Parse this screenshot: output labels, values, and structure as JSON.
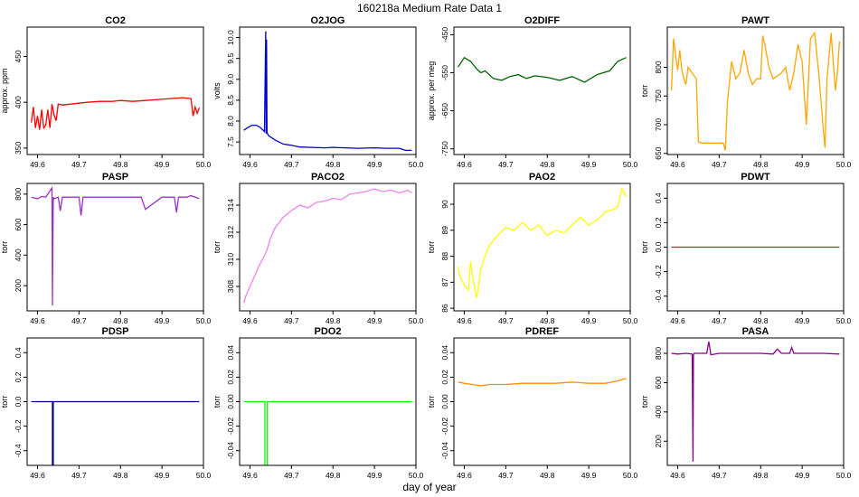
{
  "figure": {
    "title": "160218a   Medium Rate Data 1",
    "xlabel": "day of year"
  },
  "chart_data": [
    {
      "type": "line",
      "title": "CO2",
      "ylabel": "approx. ppm",
      "color": "#ff0000",
      "xlim": [
        49.575,
        50.0
      ],
      "ylim": [
        343,
        482
      ],
      "xticks": [
        "49.6",
        "49.7",
        "49.8",
        "49.9",
        "50.0"
      ],
      "yticks": [
        "350",
        "400",
        "450"
      ],
      "x": [
        49.585,
        49.59,
        49.595,
        49.6,
        49.605,
        49.61,
        49.615,
        49.62,
        49.625,
        49.63,
        49.635,
        49.64,
        49.645,
        49.65,
        49.66,
        49.68,
        49.7,
        49.72,
        49.75,
        49.78,
        49.8,
        49.83,
        49.86,
        49.89,
        49.92,
        49.95,
        49.97,
        49.975,
        49.98,
        49.985,
        49.99
      ],
      "y": [
        378,
        395,
        372,
        385,
        370,
        392,
        372,
        375,
        392,
        372,
        398,
        386,
        380,
        398,
        397,
        398,
        399,
        400,
        401,
        401,
        402,
        401,
        402,
        403,
        404,
        405,
        404,
        385,
        395,
        388,
        394
      ]
    },
    {
      "type": "line",
      "title": "O2JOG",
      "ylabel": "volts",
      "color": "#0000cc",
      "xlim": [
        49.575,
        50.0
      ],
      "ylim": [
        7.2,
        10.25
      ],
      "xticks": [
        "49.6",
        "49.7",
        "49.8",
        "49.9",
        "50.0"
      ],
      "yticks": [
        "7.5",
        "8.0",
        "8.5",
        "9.0",
        "9.5",
        "10.0"
      ],
      "x": [
        49.585,
        49.595,
        49.605,
        49.615,
        49.625,
        49.635,
        49.638,
        49.639,
        49.64,
        49.641,
        49.645,
        49.66,
        49.68,
        49.7,
        49.72,
        49.75,
        49.78,
        49.8,
        49.83,
        49.86,
        49.9,
        49.93,
        49.96,
        49.975,
        49.99
      ],
      "y": [
        7.78,
        7.85,
        7.9,
        7.9,
        7.85,
        7.75,
        10.15,
        7.7,
        9.95,
        7.72,
        7.65,
        7.55,
        7.45,
        7.42,
        7.38,
        7.37,
        7.36,
        7.37,
        7.36,
        7.35,
        7.36,
        7.35,
        7.35,
        7.3,
        7.3
      ]
    },
    {
      "type": "line",
      "title": "O2DIFF",
      "ylabel": "approx. per meg",
      "color": "#006400",
      "xlim": [
        49.575,
        50.0
      ],
      "ylim": [
        -765,
        -430
      ],
      "xticks": [
        "49.6",
        "49.7",
        "49.8",
        "49.9",
        "50.0"
      ],
      "yticks": [
        "-750",
        "-650",
        "-550",
        "-450"
      ],
      "x": [
        49.585,
        49.6,
        49.615,
        49.63,
        49.64,
        49.65,
        49.67,
        49.69,
        49.71,
        49.73,
        49.75,
        49.77,
        49.8,
        49.83,
        49.86,
        49.89,
        49.92,
        49.95,
        49.97,
        49.99
      ],
      "y": [
        -535,
        -510,
        -520,
        -540,
        -550,
        -545,
        -565,
        -570,
        -560,
        -555,
        -565,
        -558,
        -562,
        -570,
        -560,
        -575,
        -555,
        -545,
        -520,
        -510
      ]
    },
    {
      "type": "line",
      "title": "PAWT",
      "ylabel": "torr",
      "color": "#ffa500",
      "xlim": [
        49.575,
        50.0
      ],
      "ylim": [
        648,
        870
      ],
      "xticks": [
        "49.6",
        "49.7",
        "49.8",
        "49.9",
        "50.0"
      ],
      "yticks": [
        "650",
        "700",
        "750",
        "800"
      ],
      "x": [
        49.585,
        49.59,
        49.595,
        49.6,
        49.605,
        49.61,
        49.615,
        49.62,
        49.625,
        49.63,
        49.635,
        49.64,
        49.645,
        49.65,
        49.66,
        49.68,
        49.7,
        49.71,
        49.715,
        49.72,
        49.73,
        49.74,
        49.75,
        49.76,
        49.77,
        49.78,
        49.79,
        49.8,
        49.805,
        49.81,
        49.82,
        49.83,
        49.84,
        49.85,
        49.86,
        49.87,
        49.88,
        49.89,
        49.9,
        49.91,
        49.92,
        49.93,
        49.94,
        49.95,
        49.955,
        49.96,
        49.97,
        49.975,
        49.98,
        49.985,
        49.99
      ],
      "y": [
        760,
        850,
        820,
        795,
        830,
        795,
        780,
        770,
        800,
        795,
        790,
        785,
        780,
        670,
        668,
        668,
        668,
        668,
        655,
        740,
        810,
        780,
        790,
        830,
        790,
        770,
        780,
        780,
        855,
        840,
        800,
        780,
        785,
        790,
        800,
        760,
        790,
        840,
        810,
        700,
        850,
        860,
        790,
        700,
        660,
        780,
        860,
        810,
        760,
        790,
        845
      ]
    },
    {
      "type": "line",
      "title": "PASP",
      "ylabel": "torr",
      "color": "#9932cc",
      "xlim": [
        49.575,
        50.0
      ],
      "ylim": [
        35,
        870
      ],
      "xticks": [
        "49.6",
        "49.7",
        "49.8",
        "49.9",
        "50.0"
      ],
      "yticks": [
        "200",
        "400",
        "600",
        "800"
      ],
      "x": [
        49.585,
        49.6,
        49.61,
        49.62,
        49.625,
        49.63,
        49.635,
        49.636,
        49.638,
        49.64,
        49.65,
        49.655,
        49.66,
        49.7,
        49.705,
        49.71,
        49.8,
        49.85,
        49.86,
        49.9,
        49.93,
        49.935,
        49.94,
        49.95,
        49.96,
        49.97,
        49.99
      ],
      "y": [
        780,
        770,
        785,
        780,
        800,
        820,
        840,
        70,
        780,
        770,
        780,
        690,
        780,
        780,
        660,
        780,
        780,
        780,
        700,
        780,
        780,
        680,
        780,
        780,
        780,
        790,
        770
      ]
    },
    {
      "type": "line",
      "title": "PACO2",
      "ylabel": "torr",
      "color": "#ee82ee",
      "xlim": [
        49.575,
        50.0
      ],
      "ylim": [
        306.2,
        315.6
      ],
      "xticks": [
        "49.6",
        "49.7",
        "49.8",
        "49.9",
        "50.0"
      ],
      "yticks": [
        "308",
        "310",
        "312",
        "314"
      ],
      "x": [
        49.585,
        49.59,
        49.6,
        49.61,
        49.62,
        49.63,
        49.64,
        49.65,
        49.66,
        49.68,
        49.7,
        49.72,
        49.74,
        49.76,
        49.78,
        49.8,
        49.82,
        49.84,
        49.86,
        49.88,
        49.9,
        49.92,
        49.94,
        49.96,
        49.98,
        49.99
      ],
      "y": [
        306.8,
        307.3,
        308.0,
        308.7,
        309.4,
        310.0,
        310.6,
        311.6,
        312.3,
        313.1,
        313.6,
        314.0,
        313.8,
        314.2,
        314.3,
        314.5,
        314.4,
        314.8,
        314.9,
        315.0,
        315.2,
        315.0,
        315.1,
        314.9,
        315.1,
        314.9
      ]
    },
    {
      "type": "line",
      "title": "PAO2",
      "ylabel": "torr",
      "color": "#ffff00",
      "xlim": [
        49.575,
        50.0
      ],
      "ylim": [
        85.9,
        90.8
      ],
      "xticks": [
        "49.6",
        "49.7",
        "49.8",
        "49.9",
        "50.0"
      ],
      "yticks": [
        "86",
        "87",
        "88",
        "89",
        "90"
      ],
      "x": [
        49.585,
        49.59,
        49.6,
        49.61,
        49.615,
        49.62,
        49.63,
        49.64,
        49.65,
        49.66,
        49.68,
        49.7,
        49.72,
        49.74,
        49.76,
        49.78,
        49.8,
        49.82,
        49.84,
        49.86,
        49.88,
        49.9,
        49.92,
        49.94,
        49.96,
        49.97,
        49.98,
        49.99
      ],
      "y": [
        87.6,
        87.2,
        86.9,
        86.7,
        87.8,
        87.2,
        86.4,
        87.5,
        88.0,
        88.4,
        88.8,
        89.1,
        89.0,
        89.3,
        89.0,
        89.2,
        88.8,
        89.0,
        88.9,
        89.2,
        89.5,
        89.2,
        89.4,
        89.7,
        89.8,
        89.9,
        90.6,
        90.3
      ]
    },
    {
      "type": "line",
      "title": "PDWT",
      "ylabel": "torr",
      "color": "#a52a2a",
      "xlim": [
        49.575,
        50.0
      ],
      "ylim": [
        -0.52,
        0.52
      ],
      "xticks": [
        "49.6",
        "49.7",
        "49.8",
        "49.9",
        "50.0"
      ],
      "yticks": [
        "-0.4",
        "-0.2",
        "0.0",
        "0.2",
        "0.4"
      ],
      "x": [
        49.585,
        49.99
      ],
      "y": [
        0.0,
        0.0
      ]
    },
    {
      "type": "line",
      "title": "PDSP",
      "ylabel": "torr",
      "color": "#000080",
      "xlim": [
        49.575,
        50.0
      ],
      "ylim": [
        -0.52,
        0.52
      ],
      "xticks": [
        "49.6",
        "49.7",
        "49.8",
        "49.9",
        "50.0"
      ],
      "yticks": [
        "-0.4",
        "-0.2",
        "0.0",
        "0.2",
        "0.4"
      ],
      "x": [
        49.585,
        49.636,
        49.636,
        49.638,
        49.638,
        49.99
      ],
      "y": [
        0.0,
        0.0,
        -0.52,
        -0.52,
        0.0,
        0.0
      ]
    },
    {
      "type": "line",
      "title": "PDO2",
      "ylabel": "torr",
      "color": "#00ff00",
      "xlim": [
        49.575,
        50.0
      ],
      "ylim": [
        -0.052,
        0.052
      ],
      "xticks": [
        "49.6",
        "49.7",
        "49.8",
        "49.9",
        "50.0"
      ],
      "yticks": [
        "-0.04",
        "-0.02",
        "0.00",
        "0.02",
        "0.04"
      ],
      "x": [
        49.585,
        49.636,
        49.636,
        49.642,
        49.642,
        49.99
      ],
      "y": [
        0.0,
        0.0,
        -0.052,
        -0.052,
        0.0,
        0.0
      ]
    },
    {
      "type": "line",
      "title": "PDREF",
      "ylabel": "torr",
      "color": "#ff8c00",
      "xlim": [
        49.575,
        50.0
      ],
      "ylim": [
        -0.052,
        0.052
      ],
      "xticks": [
        "49.6",
        "49.7",
        "49.8",
        "49.9",
        "50.0"
      ],
      "yticks": [
        "-0.04",
        "-0.02",
        "0.00",
        "0.02",
        "0.04"
      ],
      "x": [
        49.585,
        49.6,
        49.62,
        49.64,
        49.66,
        49.7,
        49.74,
        49.78,
        49.82,
        49.86,
        49.9,
        49.94,
        49.97,
        49.99
      ],
      "y": [
        0.016,
        0.015,
        0.014,
        0.013,
        0.014,
        0.014,
        0.015,
        0.015,
        0.015,
        0.016,
        0.015,
        0.015,
        0.017,
        0.019
      ]
    },
    {
      "type": "line",
      "title": "PASA",
      "ylabel": "torr",
      "color": "#8b008b",
      "xlim": [
        49.575,
        50.0
      ],
      "ylim": [
        35,
        905
      ],
      "xticks": [
        "49.6",
        "49.7",
        "49.8",
        "49.9",
        "50.0"
      ],
      "yticks": [
        "200",
        "400",
        "600",
        "800"
      ],
      "x": [
        49.585,
        49.6,
        49.62,
        49.635,
        49.637,
        49.638,
        49.64,
        49.65,
        49.66,
        49.67,
        49.675,
        49.68,
        49.7,
        49.75,
        49.8,
        49.83,
        49.84,
        49.85,
        49.87,
        49.875,
        49.88,
        49.9,
        49.95,
        49.99
      ],
      "y": [
        800,
        795,
        800,
        795,
        60,
        790,
        800,
        800,
        800,
        800,
        880,
        790,
        800,
        800,
        800,
        795,
        830,
        800,
        800,
        840,
        800,
        800,
        800,
        795
      ]
    }
  ]
}
